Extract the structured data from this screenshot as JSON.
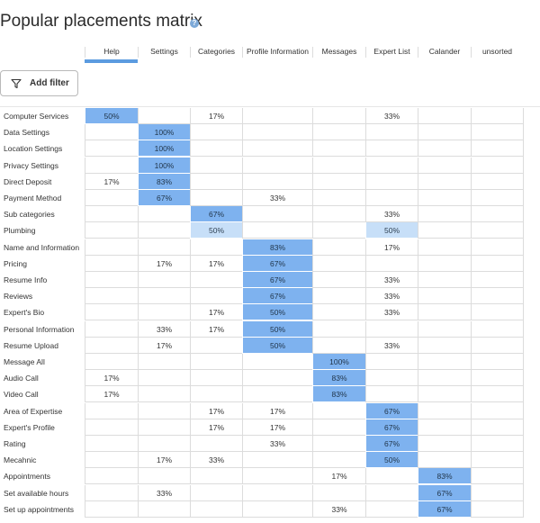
{
  "page": {
    "title": "Popular placements matrix",
    "help_icon": "info-circle-icon",
    "filter_button_label": "Add filter",
    "filter_icon": "filter-funnel-icon"
  },
  "columns": [
    "Help",
    "Settings",
    "Categories",
    "Profile Information",
    "Messages",
    "Expert List",
    "Calander",
    "unsorted"
  ],
  "colors": {
    "cell_high": "#7eb2ef",
    "cell_low": "#c7dff8",
    "header_bar": "#5b9be0",
    "help_icon": "#7da9d8"
  },
  "rows": [
    {
      "label": "Computer Services",
      "cells": [
        "50%",
        "",
        "17%",
        "",
        "",
        "33%",
        "",
        ""
      ],
      "hi": [
        0
      ],
      "lo": []
    },
    {
      "label": "Data Settings",
      "cells": [
        "",
        "100%",
        "",
        "",
        "",
        "",
        "",
        ""
      ],
      "hi": [
        1
      ],
      "lo": []
    },
    {
      "label": "Location Settings",
      "cells": [
        "",
        "100%",
        "",
        "",
        "",
        "",
        "",
        ""
      ],
      "hi": [
        1
      ],
      "lo": []
    },
    {
      "label": "Privacy Settings",
      "cells": [
        "",
        "100%",
        "",
        "",
        "",
        "",
        "",
        ""
      ],
      "hi": [
        1
      ],
      "lo": []
    },
    {
      "label": "Direct Deposit",
      "cells": [
        "17%",
        "83%",
        "",
        "",
        "",
        "",
        "",
        ""
      ],
      "hi": [
        1
      ],
      "lo": []
    },
    {
      "label": "Payment Method",
      "cells": [
        "",
        "67%",
        "",
        "33%",
        "",
        "",
        "",
        ""
      ],
      "hi": [
        1
      ],
      "lo": []
    },
    {
      "label": "Sub categories",
      "cells": [
        "",
        "",
        "67%",
        "",
        "",
        "33%",
        "",
        ""
      ],
      "hi": [
        2
      ],
      "lo": []
    },
    {
      "label": "Plumbing",
      "cells": [
        "",
        "",
        "50%",
        "",
        "",
        "50%",
        "",
        ""
      ],
      "hi": [],
      "lo": [
        2,
        5
      ]
    },
    {
      "label": "Name and Information",
      "cells": [
        "",
        "",
        "",
        "83%",
        "",
        "17%",
        "",
        ""
      ],
      "hi": [
        3
      ],
      "lo": []
    },
    {
      "label": "Pricing",
      "cells": [
        "",
        "17%",
        "17%",
        "67%",
        "",
        "",
        "",
        ""
      ],
      "hi": [
        3
      ],
      "lo": []
    },
    {
      "label": "Resume Info",
      "cells": [
        "",
        "",
        "",
        "67%",
        "",
        "33%",
        "",
        ""
      ],
      "hi": [
        3
      ],
      "lo": []
    },
    {
      "label": "Reviews",
      "cells": [
        "",
        "",
        "",
        "67%",
        "",
        "33%",
        "",
        ""
      ],
      "hi": [
        3
      ],
      "lo": []
    },
    {
      "label": "Expert's Bio",
      "cells": [
        "",
        "",
        "17%",
        "50%",
        "",
        "33%",
        "",
        ""
      ],
      "hi": [
        3
      ],
      "lo": []
    },
    {
      "label": "Personal Information",
      "cells": [
        "",
        "33%",
        "17%",
        "50%",
        "",
        "",
        "",
        ""
      ],
      "hi": [
        3
      ],
      "lo": []
    },
    {
      "label": "Resume Upload",
      "cells": [
        "",
        "17%",
        "",
        "50%",
        "",
        "33%",
        "",
        ""
      ],
      "hi": [
        3
      ],
      "lo": []
    },
    {
      "label": "Message All",
      "cells": [
        "",
        "",
        "",
        "",
        "100%",
        "",
        "",
        ""
      ],
      "hi": [
        4
      ],
      "lo": []
    },
    {
      "label": "Audio Call",
      "cells": [
        "17%",
        "",
        "",
        "",
        "83%",
        "",
        "",
        ""
      ],
      "hi": [
        4
      ],
      "lo": []
    },
    {
      "label": "Video Call",
      "cells": [
        "17%",
        "",
        "",
        "",
        "83%",
        "",
        "",
        ""
      ],
      "hi": [
        4
      ],
      "lo": []
    },
    {
      "label": "Area of Expertise",
      "cells": [
        "",
        "",
        "17%",
        "17%",
        "",
        "67%",
        "",
        ""
      ],
      "hi": [
        5
      ],
      "lo": []
    },
    {
      "label": "Expert's Profile",
      "cells": [
        "",
        "",
        "17%",
        "17%",
        "",
        "67%",
        "",
        ""
      ],
      "hi": [
        5
      ],
      "lo": []
    },
    {
      "label": "Rating",
      "cells": [
        "",
        "",
        "",
        "33%",
        "",
        "67%",
        "",
        ""
      ],
      "hi": [
        5
      ],
      "lo": []
    },
    {
      "label": "Mecahnic",
      "cells": [
        "",
        "17%",
        "33%",
        "",
        "",
        "50%",
        "",
        ""
      ],
      "hi": [
        5
      ],
      "lo": []
    },
    {
      "label": "Appointments",
      "cells": [
        "",
        "",
        "",
        "",
        "17%",
        "",
        "83%",
        ""
      ],
      "hi": [
        6
      ],
      "lo": []
    },
    {
      "label": "Set available hours",
      "cells": [
        "",
        "33%",
        "",
        "",
        "",
        "",
        "67%",
        ""
      ],
      "hi": [
        6
      ],
      "lo": []
    },
    {
      "label": "Set up appointments",
      "cells": [
        "",
        "",
        "",
        "",
        "33%",
        "",
        "67%",
        ""
      ],
      "hi": [
        6
      ],
      "lo": []
    }
  ]
}
